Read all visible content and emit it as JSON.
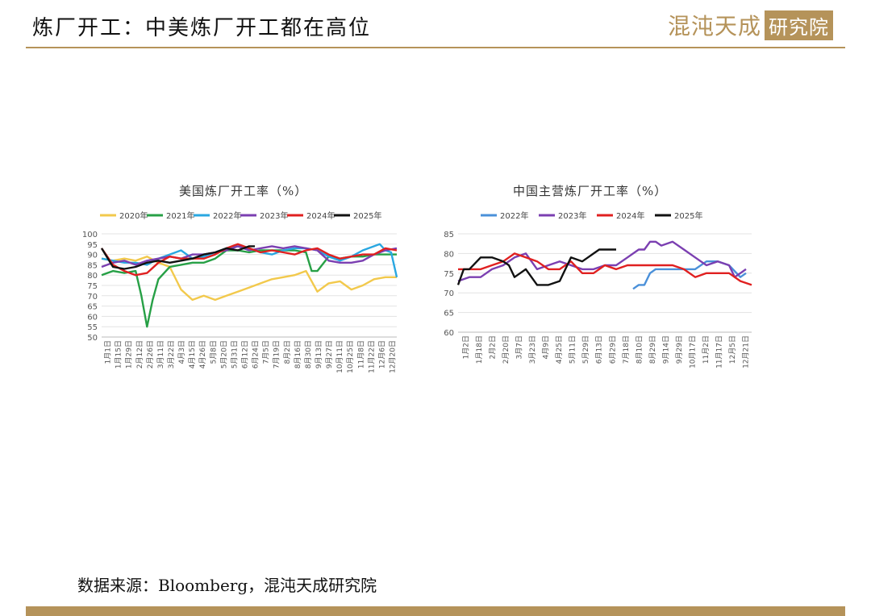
{
  "page": {
    "title": "炼厂开工：中美炼厂开工都在高位",
    "logo_text": "混沌天成",
    "logo_box": "研究院",
    "source": "数据来源：Bloomberg，混沌天成研究院",
    "accent_color": "#b5935a"
  },
  "chart_data": [
    {
      "type": "line",
      "title": "美国炼厂开工率（%）",
      "ylim": [
        50,
        100
      ],
      "yticks": [
        50,
        55,
        60,
        65,
        70,
        75,
        80,
        85,
        90,
        95,
        100
      ],
      "xticklabels": [
        "1月1日",
        "1月15日",
        "1月29日",
        "2月12日",
        "2月26日",
        "3月11日",
        "3月22日",
        "4月3日",
        "4月15日",
        "4月26日",
        "5月8日",
        "5月20日",
        "5月31日",
        "6月12日",
        "6月24日",
        "7月5日",
        "7月19日",
        "8月2日",
        "8月16日",
        "8月30日",
        "9月13日",
        "9月27日",
        "10月11日",
        "10月25日",
        "11月8日",
        "11月22日",
        "12月6日",
        "12月20日"
      ],
      "grid": true,
      "legend": "top",
      "series": [
        {
          "name": "2020年",
          "color": "#f2c94c",
          "week": [
            0,
            2,
            4,
            6,
            8,
            10,
            12,
            14,
            16,
            18,
            20,
            22,
            24,
            26,
            28,
            30,
            32,
            34,
            36,
            38,
            40,
            42,
            44,
            46,
            48,
            50,
            52
          ],
          "values": [
            88,
            87,
            88,
            87,
            89,
            86,
            84,
            73,
            68,
            70,
            68,
            70,
            72,
            74,
            76,
            78,
            79,
            80,
            82,
            72,
            76,
            77,
            73,
            75,
            78,
            79,
            79
          ]
        },
        {
          "name": "2021年",
          "color": "#27a046",
          "week": [
            0,
            2,
            4,
            6,
            7,
            8,
            9,
            10,
            12,
            14,
            16,
            18,
            20,
            22,
            24,
            26,
            28,
            30,
            32,
            34,
            36,
            37,
            38,
            40,
            42,
            44,
            46,
            48,
            50,
            52
          ],
          "values": [
            80,
            82,
            81,
            82,
            70,
            55,
            68,
            78,
            84,
            85,
            86,
            86,
            88,
            92,
            92,
            91,
            92,
            92,
            92,
            92,
            91,
            82,
            82,
            89,
            88,
            89,
            89,
            90,
            90,
            90
          ]
        },
        {
          "name": "2022年",
          "color": "#29a7e1",
          "week": [
            0,
            2,
            4,
            6,
            8,
            10,
            12,
            14,
            16,
            18,
            20,
            22,
            24,
            26,
            28,
            30,
            32,
            34,
            36,
            38,
            40,
            42,
            44,
            46,
            48,
            49,
            50,
            51,
            52
          ],
          "values": [
            88,
            87,
            86,
            86,
            85,
            88,
            90,
            92,
            88,
            89,
            91,
            93,
            94,
            93,
            91,
            90,
            92,
            93,
            93,
            92,
            89,
            87,
            89,
            92,
            94,
            95,
            92,
            91,
            79
          ]
        },
        {
          "name": "2023年",
          "color": "#7b3fb1",
          "week": [
            0,
            2,
            4,
            6,
            8,
            10,
            12,
            14,
            16,
            18,
            20,
            22,
            24,
            26,
            28,
            30,
            32,
            34,
            36,
            38,
            40,
            42,
            44,
            46,
            48,
            50,
            52
          ],
          "values": [
            84,
            86,
            87,
            85,
            87,
            88,
            89,
            88,
            90,
            90,
            91,
            92,
            94,
            92,
            93,
            94,
            93,
            94,
            93,
            92,
            87,
            86,
            86,
            87,
            90,
            92,
            93
          ]
        },
        {
          "name": "2024年",
          "color": "#e02020",
          "week": [
            0,
            2,
            4,
            6,
            8,
            10,
            12,
            14,
            16,
            18,
            20,
            22,
            24,
            26,
            28,
            30,
            32,
            34,
            36,
            38,
            40,
            42,
            44,
            46,
            48,
            50,
            52
          ],
          "values": [
            93,
            85,
            82,
            80,
            81,
            86,
            89,
            88,
            88,
            88,
            90,
            93,
            95,
            93,
            91,
            92,
            91,
            90,
            92,
            93,
            90,
            88,
            89,
            90,
            90,
            93,
            92
          ]
        },
        {
          "name": "2025年",
          "color": "#111111",
          "week": [
            0,
            2,
            4,
            6,
            8,
            10,
            12,
            14,
            16,
            18,
            20,
            22,
            24,
            26,
            27
          ],
          "values": [
            93,
            84,
            83,
            84,
            86,
            87,
            86,
            87,
            88,
            90,
            91,
            93,
            92,
            94,
            94
          ]
        }
      ]
    },
    {
      "type": "line",
      "title": "中国主营炼厂开工率（%）",
      "ylim": [
        60,
        85
      ],
      "yticks": [
        60,
        65,
        70,
        75,
        80,
        85
      ],
      "xticklabels": [
        "1月2日",
        "1月18日",
        "2月2日",
        "2月20日",
        "3月7日",
        "3月23日",
        "4月9日",
        "4月25日",
        "5月11日",
        "5月29日",
        "6月13日",
        "6月29日",
        "7月18日",
        "8月10日",
        "8月29日",
        "9月14日",
        "9月29日",
        "10月17日",
        "11月2日",
        "11月17日",
        "12月5日",
        "12月21日"
      ],
      "grid": true,
      "legend": "top",
      "series": [
        {
          "name": "2022年",
          "color": "#4a90d9",
          "week": [
            31,
            32,
            33,
            34,
            35,
            36,
            38,
            40,
            42,
            44,
            46,
            48,
            50,
            51
          ],
          "values": [
            71,
            72,
            72,
            75,
            76,
            76,
            76,
            76,
            76,
            78,
            78,
            77,
            74,
            75
          ]
        },
        {
          "name": "2023年",
          "color": "#7b3fb1",
          "week": [
            0,
            2,
            4,
            6,
            8,
            10,
            12,
            14,
            16,
            18,
            20,
            22,
            24,
            26,
            28,
            30,
            32,
            33,
            34,
            35,
            36,
            38,
            40,
            42,
            43,
            44,
            46,
            48,
            49,
            50,
            51
          ],
          "values": [
            73,
            74,
            74,
            76,
            77,
            79,
            80,
            76,
            77,
            78,
            77,
            76,
            76,
            77,
            77,
            79,
            81,
            81,
            83,
            83,
            82,
            83,
            81,
            79,
            78,
            77,
            78,
            77,
            74,
            75,
            76
          ]
        },
        {
          "name": "2024年",
          "color": "#e02020",
          "week": [
            0,
            2,
            4,
            6,
            8,
            10,
            12,
            14,
            16,
            18,
            20,
            22,
            24,
            26,
            28,
            30,
            32,
            34,
            36,
            38,
            40,
            42,
            44,
            46,
            48,
            50,
            52
          ],
          "values": [
            76,
            76,
            76,
            77,
            78,
            80,
            79,
            78,
            76,
            76,
            78,
            75,
            75,
            77,
            76,
            77,
            77,
            77,
            77,
            77,
            76,
            74,
            75,
            75,
            75,
            73,
            72
          ]
        },
        {
          "name": "2025年",
          "color": "#111111",
          "week": [
            0,
            1,
            2,
            4,
            6,
            8,
            9,
            10,
            11,
            12,
            14,
            16,
            18,
            20,
            22,
            23,
            24,
            25,
            26,
            28
          ],
          "values": [
            72,
            76,
            76,
            79,
            79,
            78,
            77,
            74,
            75,
            76,
            72,
            72,
            73,
            79,
            78,
            79,
            80,
            81,
            81,
            81
          ]
        }
      ]
    }
  ]
}
